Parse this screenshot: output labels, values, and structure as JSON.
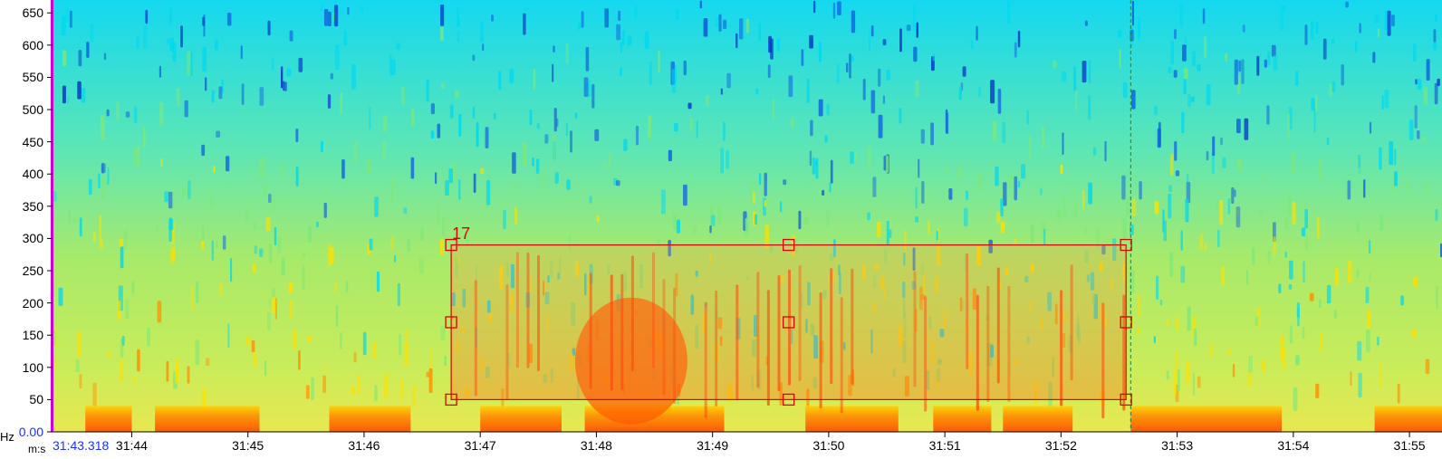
{
  "y_axis": {
    "unit": "Hz",
    "ticks": [
      "650",
      "600",
      "550",
      "500",
      "450",
      "400",
      "350",
      "300",
      "250",
      "200",
      "150",
      "100",
      "50",
      "0.00"
    ],
    "tick_values": [
      650,
      600,
      550,
      500,
      450,
      400,
      350,
      300,
      250,
      200,
      150,
      100,
      50,
      0
    ],
    "range": [
      0,
      670
    ]
  },
  "x_axis": {
    "unit": "m:s",
    "start_label": "31:43.318",
    "ticks": [
      "31:44",
      "31:45",
      "31:46",
      "31:47",
      "31:48",
      "31:49",
      "31:50",
      "31:51",
      "31:52",
      "31:53",
      "31:54",
      "31:55"
    ],
    "tick_seconds": [
      1904,
      1905,
      1906,
      1907,
      1908,
      1909,
      1910,
      1911,
      1912,
      1913,
      1914,
      1915
    ],
    "range_seconds": [
      1903.318,
      1915.28
    ]
  },
  "selection": {
    "label": "17",
    "time_start_seconds": 1906.75,
    "time_end_seconds": 1912.56,
    "freq_low_hz": 50,
    "freq_high_hz": 290,
    "color": "#e00000"
  },
  "cursor_time_seconds": 1912.6,
  "colors": {
    "low": "#00d8f0",
    "mid": "#7ee87a",
    "high": "#ffe000",
    "peak": "#ff2000",
    "deep": "#0a30c8",
    "left_edge": "#d000d0"
  }
}
